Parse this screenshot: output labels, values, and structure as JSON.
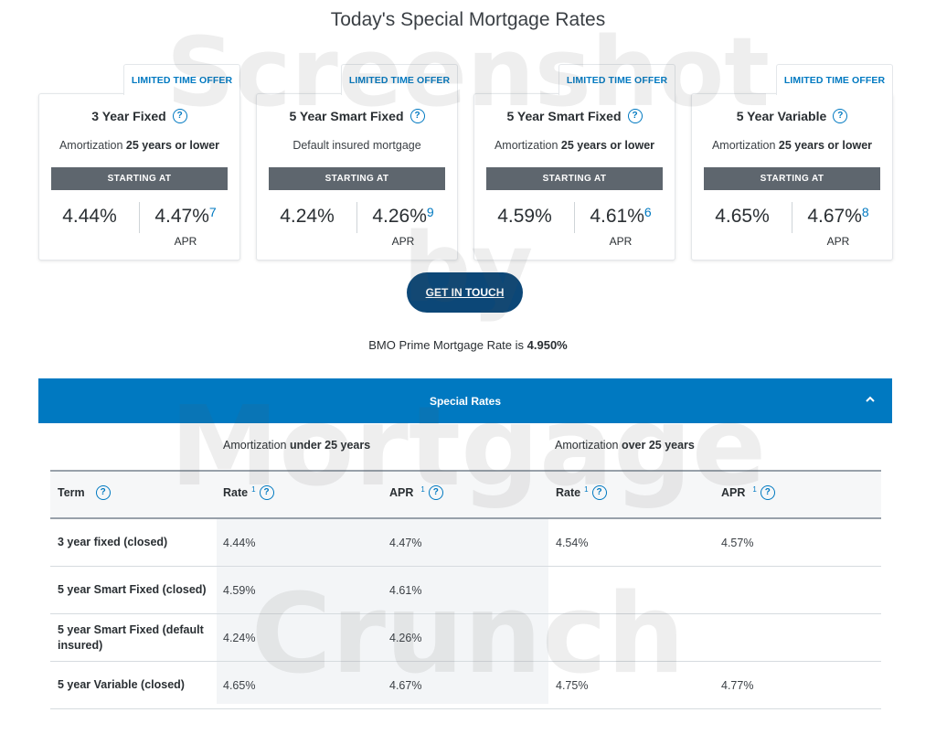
{
  "page": {
    "title": "Today's Special Mortgage Rates"
  },
  "cards": [
    {
      "offer": "LIMITED TIME OFFER",
      "title": "3 Year Fixed",
      "sub_prefix": "Amortization ",
      "sub_bold": "25 years or lower",
      "starting": "STARTING AT",
      "rate": "4.44%",
      "apr": "4.47%",
      "footnote": "7",
      "apr_label": "APR"
    },
    {
      "offer": "LIMITED TIME OFFER",
      "title": "5 Year Smart Fixed",
      "sub_prefix": "Default insured mortgage",
      "sub_bold": "",
      "starting": "STARTING AT",
      "rate": "4.24%",
      "apr": "4.26%",
      "footnote": "9",
      "apr_label": "APR"
    },
    {
      "offer": "LIMITED TIME OFFER",
      "title": "5 Year Smart Fixed",
      "sub_prefix": "Amortization ",
      "sub_bold": "25 years or lower",
      "starting": "STARTING AT",
      "rate": "4.59%",
      "apr": "4.61%",
      "footnote": "6",
      "apr_label": "APR"
    },
    {
      "offer": "LIMITED TIME OFFER",
      "title": "5 Year Variable",
      "sub_prefix": "Amortization ",
      "sub_bold": "25 years or lower",
      "starting": "STARTING AT",
      "rate": "4.65%",
      "apr": "4.67%",
      "footnote": "8",
      "apr_label": "APR"
    }
  ],
  "cta": {
    "label": "GET IN TOUCH"
  },
  "prime": {
    "prefix": "BMO Prime Mortgage Rate is ",
    "value": "4.950%"
  },
  "accordion": {
    "label": "Special Rates"
  },
  "table": {
    "group_under_prefix": "Amortization ",
    "group_under_bold": "under 25 years",
    "group_over_prefix": "Amortization ",
    "group_over_bold": "over 25 years",
    "headers": {
      "term": "Term",
      "rate1": "Rate",
      "rate1_sup": "1",
      "apr1": "APR",
      "apr1_sup": "1",
      "rate2": "Rate",
      "rate2_sup": "1",
      "apr2": "APR",
      "apr2_sup": "1"
    },
    "rows": [
      {
        "term": "3 year fixed (closed)",
        "rate_under": "4.44%",
        "apr_under": "4.47%",
        "rate_over": "4.54%",
        "apr_over": "4.57%"
      },
      {
        "term": "5 year Smart Fixed (closed)",
        "rate_under": "4.59%",
        "apr_under": "4.61%",
        "rate_over": "",
        "apr_over": ""
      },
      {
        "term": "5 year Smart Fixed (default insured)",
        "rate_under": "4.24%",
        "apr_under": "4.26%",
        "rate_over": "",
        "apr_over": ""
      },
      {
        "term": "5 year Variable (closed)",
        "rate_under": "4.65%",
        "apr_under": "4.67%",
        "rate_over": "4.75%",
        "apr_over": "4.77%"
      }
    ]
  },
  "watermark": {
    "line1": "Screenshot",
    "line2": "by",
    "line3": "Mortgage",
    "line4": "Crunch"
  },
  "colors": {
    "accent": "#0079c1",
    "cta": "#0c4777",
    "bar": "#5e666e"
  }
}
